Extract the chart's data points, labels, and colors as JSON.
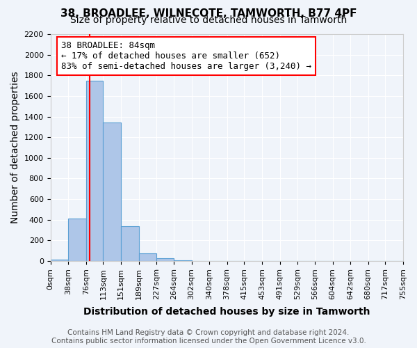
{
  "title_line1": "38, BROADLEE, WILNECOTE, TAMWORTH, B77 4PF",
  "title_line2": "Size of property relative to detached houses in Tamworth",
  "xlabel": "Distribution of detached houses by size in Tamworth",
  "ylabel": "Number of detached properties",
  "bar_edges": [
    0,
    38,
    76,
    113,
    151,
    189,
    227,
    264,
    302,
    340,
    378,
    415,
    453,
    491,
    529,
    566,
    604,
    642,
    680,
    717,
    755
  ],
  "bar_heights": [
    15,
    415,
    1750,
    1345,
    340,
    75,
    25,
    5,
    0,
    0,
    0,
    0,
    0,
    0,
    0,
    0,
    0,
    0,
    0,
    0
  ],
  "bar_color": "#aec6e8",
  "bar_edgecolor": "#5a9fd4",
  "vline_x": 84,
  "vline_color": "red",
  "ylim": [
    0,
    2200
  ],
  "yticks": [
    0,
    200,
    400,
    600,
    800,
    1000,
    1200,
    1400,
    1600,
    1800,
    2000,
    2200
  ],
  "xtick_labels": [
    "0sqm",
    "38sqm",
    "76sqm",
    "113sqm",
    "151sqm",
    "189sqm",
    "227sqm",
    "264sqm",
    "302sqm",
    "340sqm",
    "378sqm",
    "415sqm",
    "453sqm",
    "491sqm",
    "529sqm",
    "566sqm",
    "604sqm",
    "642sqm",
    "680sqm",
    "717sqm",
    "755sqm"
  ],
  "annotation_title": "38 BROADLEE: 84sqm",
  "annotation_line2": "← 17% of detached houses are smaller (652)",
  "annotation_line3": "83% of semi-detached houses are larger (3,240) →",
  "annotation_box_color": "white",
  "annotation_box_edgecolor": "red",
  "footer_line1": "Contains HM Land Registry data © Crown copyright and database right 2024.",
  "footer_line2": "Contains public sector information licensed under the Open Government Licence v3.0.",
  "background_color": "#f0f4fa",
  "grid_color": "white",
  "title_fontsize": 11,
  "subtitle_fontsize": 10,
  "axis_label_fontsize": 10,
  "tick_fontsize": 8,
  "annotation_fontsize": 9,
  "footer_fontsize": 7.5
}
